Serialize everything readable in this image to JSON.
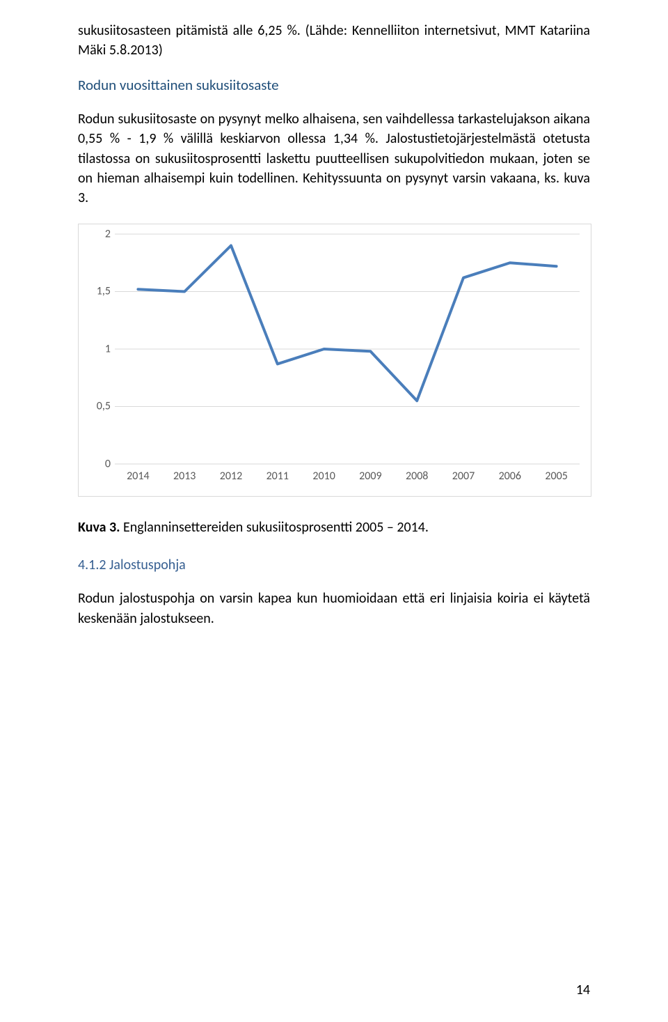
{
  "paragraphs": {
    "intro": "sukusiitosasteen pitämistä alle 6,25 %. (Lähde: Kennelliiton internetsivut, MMT Katariina Mäki 5.8.2013)",
    "sect_heading": "Rodun vuosittainen sukusiitosaste",
    "body1": "Rodun sukusiitosaste on pysynyt melko alhaisena, sen vaihdellessa tarkastelujakson aikana 0,55 % - 1,9 % välillä keskiarvon ollessa 1,34 %. Jalostustietojärjestelmästä otetusta tilastossa on sukusiitosprosentti laskettu puutteellisen sukupolvitiedon mukaan, joten se on hieman alhaisempi kuin todellinen. Kehityssuunta on pysynyt varsin vakaana, ks. kuva 3.",
    "caption_label": "Kuva 3.",
    "caption_rest": " Englanninsettereiden sukusiitosprosentti 2005 – 2014.",
    "subsection": "4.1.2 Jalostuspohja",
    "body2": "Rodun jalostuspohja on varsin kapea kun huomioidaan että eri linjaisia koiria ei käytetä keskenään jalostukseen."
  },
  "chart": {
    "type": "line",
    "line_color": "#4a7ebb",
    "line_width": 4,
    "background_color": "#ffffff",
    "border_color": "#d9d9d9",
    "grid_color": "#d9d9d9",
    "axis_text_color": "#595959",
    "axis_fontsize": 16,
    "ylim": [
      0,
      2
    ],
    "ytick_step": 0.5,
    "yticks": [
      {
        "v": 0,
        "label": "0"
      },
      {
        "v": 0.5,
        "label": "0,5"
      },
      {
        "v": 1,
        "label": "1"
      },
      {
        "v": 1.5,
        "label": "1,5"
      },
      {
        "v": 2,
        "label": "2"
      }
    ],
    "categories": [
      "2014",
      "2013",
      "2012",
      "2011",
      "2010",
      "2009",
      "2008",
      "2007",
      "2006",
      "2005"
    ],
    "values": [
      1.52,
      1.5,
      1.9,
      0.87,
      1.0,
      0.98,
      0.55,
      1.62,
      1.75,
      1.72
    ]
  },
  "page_number": "14"
}
